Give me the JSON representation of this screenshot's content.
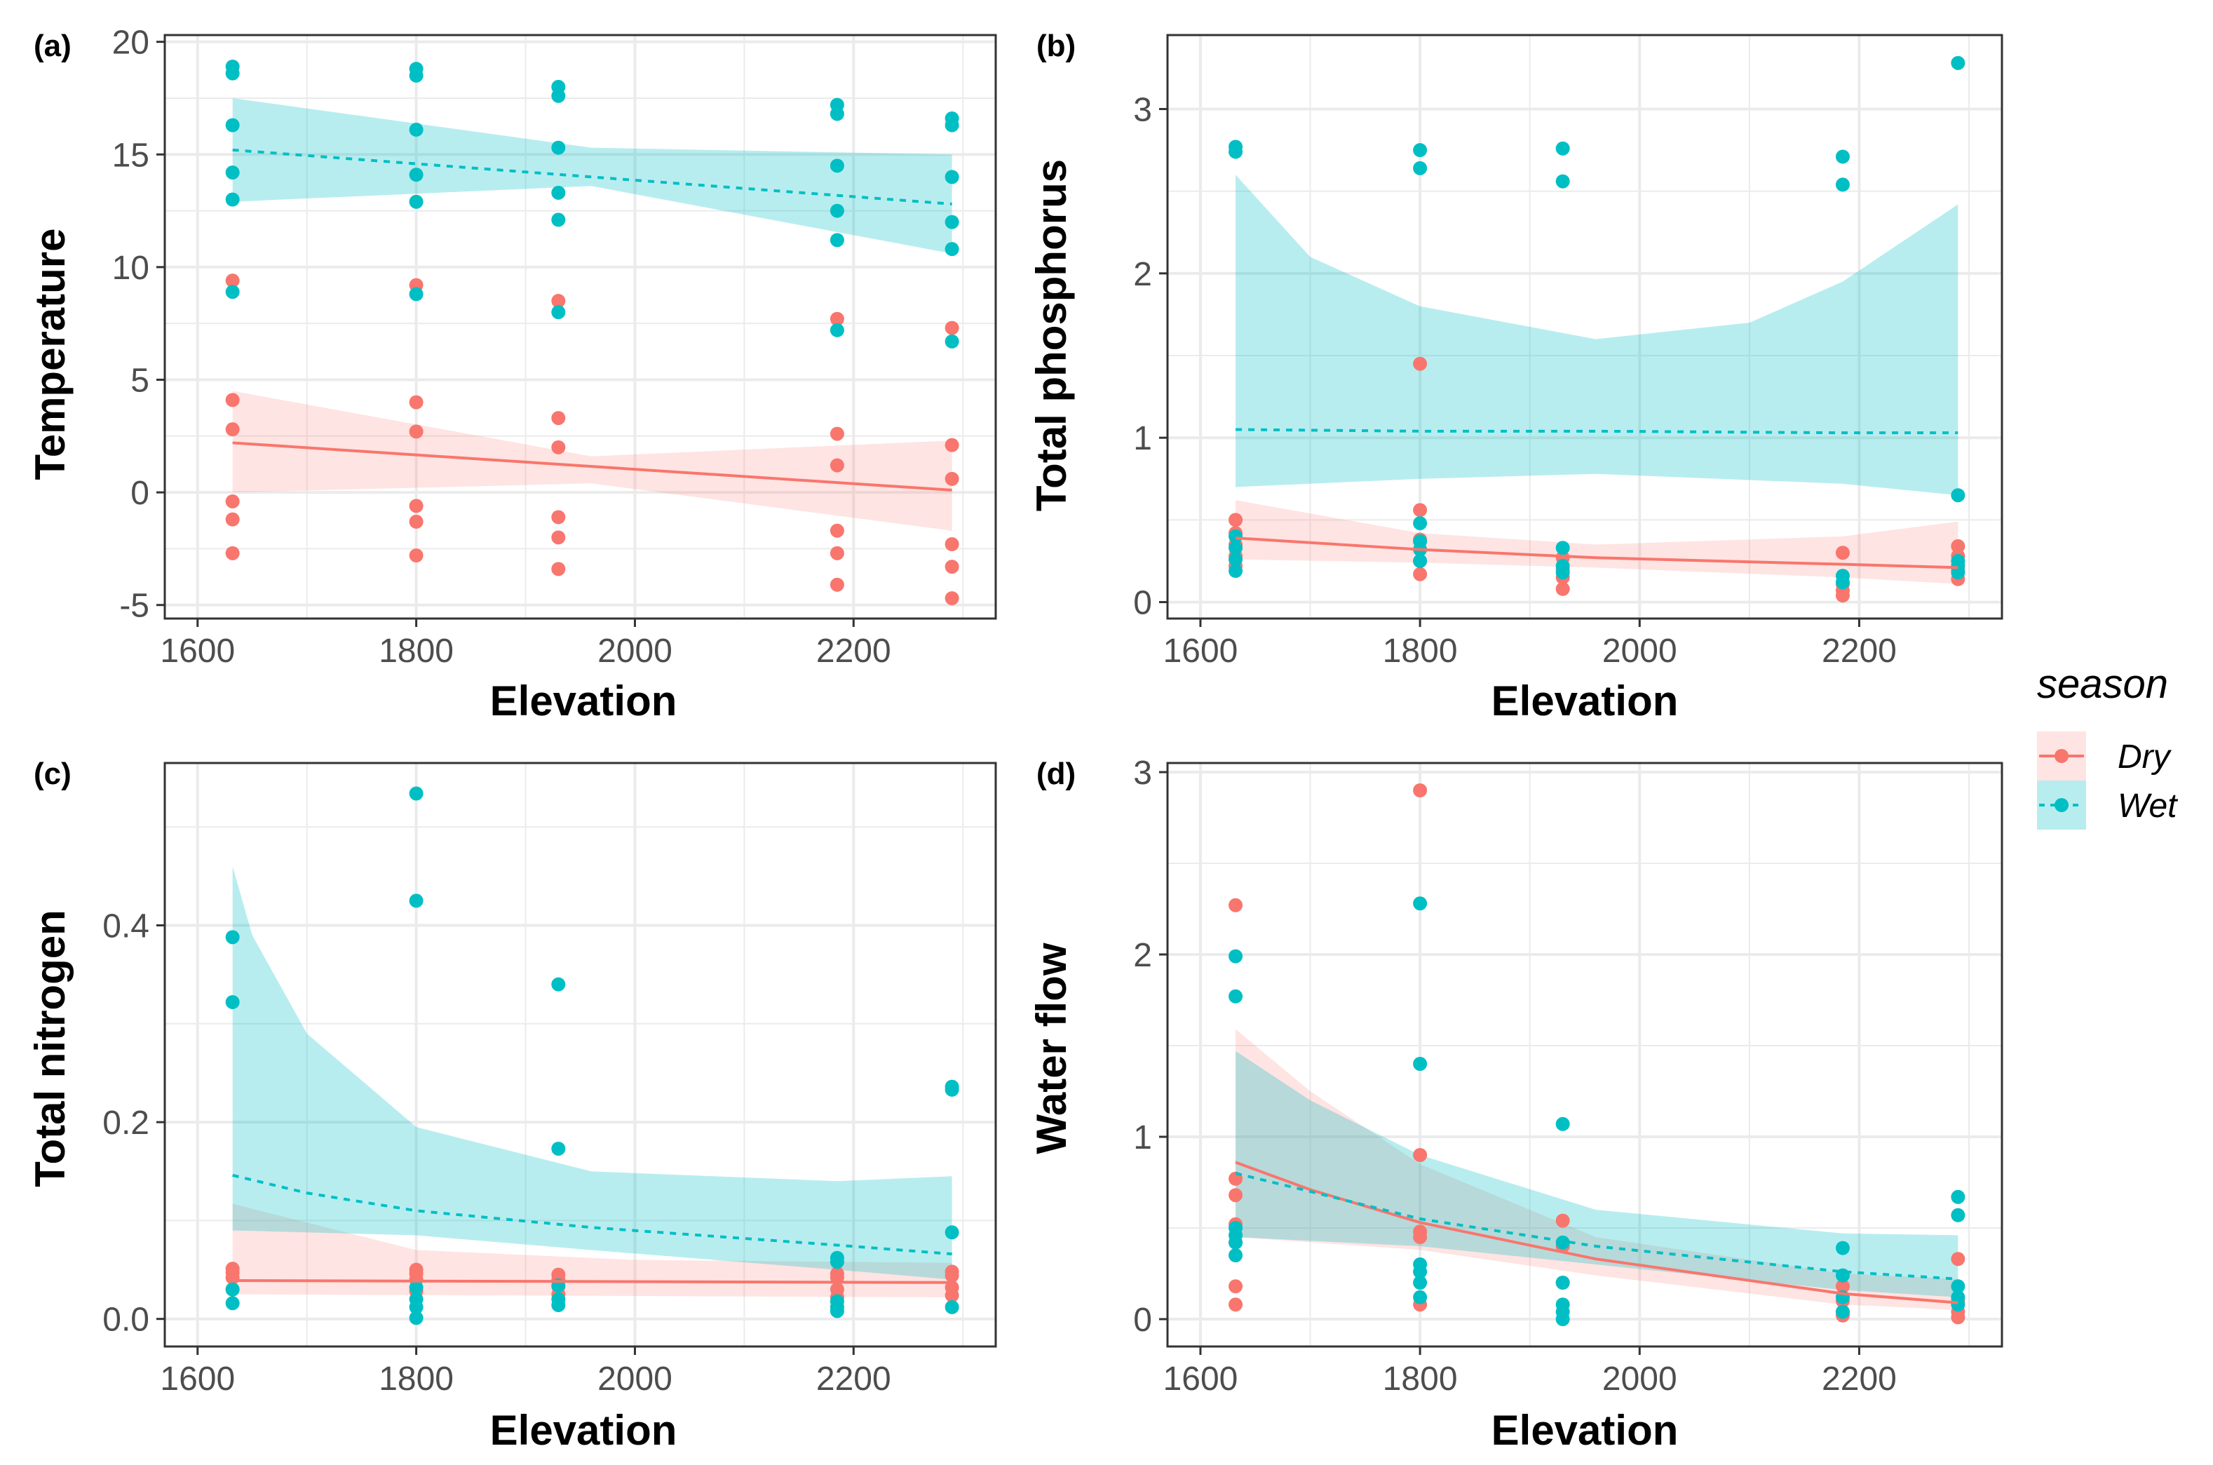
{
  "colors": {
    "dry": "#f8766d",
    "wet": "#00bfc4",
    "dry_band": "#f8766d",
    "wet_band": "#00bfc4",
    "grid": "#ebebeb",
    "panel_border": "#333333"
  },
  "legend": {
    "title": "season",
    "items": [
      {
        "key": "dry",
        "label": "Dry",
        "linestyle": "solid"
      },
      {
        "key": "wet",
        "label": "Wet",
        "linestyle": "dashed"
      }
    ]
  },
  "chart_data": [
    {
      "type": "scatter",
      "panel": "(a)",
      "xlabel": "Elevation",
      "ylabel": "Temperature",
      "xlim": [
        1570,
        2330
      ],
      "ylim": [
        -5.6,
        20.3
      ],
      "xticks": [
        1600,
        1800,
        2000,
        2200
      ],
      "yticks": [
        -5,
        0,
        5,
        10,
        15,
        20
      ],
      "tick_labels_x": [
        "1600",
        "1800",
        "2000",
        "2200"
      ],
      "tick_labels_y": [
        "-5",
        "0",
        "5",
        "10",
        "15",
        "20"
      ],
      "series": [
        {
          "name": "Dry",
          "x": [
            1632,
            1632,
            1632,
            1632,
            1632,
            1632,
            1800,
            1800,
            1800,
            1800,
            1800,
            1800,
            1930,
            1930,
            1930,
            1930,
            1930,
            1930,
            2185,
            2185,
            2185,
            2185,
            2185,
            2185,
            2290,
            2290,
            2290,
            2290,
            2290,
            2290
          ],
          "y": [
            9.4,
            4.1,
            2.8,
            -0.4,
            -1.2,
            -2.7,
            9.2,
            4.0,
            2.7,
            -0.6,
            -1.3,
            -2.8,
            8.5,
            3.3,
            2.0,
            -1.1,
            -2.0,
            -3.4,
            7.7,
            2.6,
            1.2,
            -1.7,
            -2.7,
            -4.1,
            7.3,
            2.1,
            0.6,
            -2.3,
            -3.3,
            -4.7
          ]
        },
        {
          "name": "Wet",
          "x": [
            1632,
            1632,
            1632,
            1632,
            1632,
            1632,
            1800,
            1800,
            1800,
            1800,
            1800,
            1800,
            1930,
            1930,
            1930,
            1930,
            1930,
            1930,
            2185,
            2185,
            2185,
            2185,
            2185,
            2185,
            2290,
            2290,
            2290,
            2290,
            2290,
            2290
          ],
          "y": [
            18.9,
            18.6,
            16.3,
            14.2,
            13.0,
            8.9,
            18.8,
            18.5,
            16.1,
            14.1,
            12.9,
            8.8,
            18.0,
            17.6,
            15.3,
            13.3,
            12.1,
            8.0,
            17.2,
            16.8,
            14.5,
            12.5,
            11.2,
            7.2,
            16.6,
            16.3,
            14.0,
            12.0,
            10.8,
            6.7
          ]
        }
      ],
      "fits": [
        {
          "name": "Dry",
          "x": [
            1632,
            2290
          ],
          "y": [
            2.2,
            0.1
          ],
          "ci_lower": [
            [
              1632,
              -0.0
            ],
            [
              1960,
              0.4
            ],
            [
              2290,
              -1.7
            ]
          ],
          "ci_upper": [
            [
              1632,
              4.5
            ],
            [
              1960,
              1.6
            ],
            [
              2290,
              2.3
            ]
          ]
        },
        {
          "name": "Wet",
          "x": [
            1632,
            2290
          ],
          "y": [
            15.2,
            12.8
          ],
          "ci_lower": [
            [
              1632,
              12.9
            ],
            [
              1960,
              13.6
            ],
            [
              2290,
              10.6
            ]
          ],
          "ci_upper": [
            [
              1632,
              17.5
            ],
            [
              1960,
              15.3
            ],
            [
              2290,
              15.0
            ]
          ]
        }
      ]
    },
    {
      "type": "scatter",
      "panel": "(b)",
      "xlabel": "Elevation",
      "ylabel": "Total phosphorus",
      "xlim": [
        1570,
        2330
      ],
      "ylim": [
        -0.1,
        3.45
      ],
      "xticks": [
        1600,
        1800,
        2000,
        2200
      ],
      "yticks": [
        0,
        1,
        2,
        3
      ],
      "tick_labels_x": [
        "1600",
        "1800",
        "2000",
        "2200"
      ],
      "tick_labels_y": [
        "0",
        "1",
        "2",
        "3"
      ],
      "series": [
        {
          "name": "Dry",
          "x": [
            1632,
            1632,
            1632,
            1632,
            1632,
            1800,
            1800,
            1800,
            1800,
            1800,
            1930,
            1930,
            1930,
            1930,
            2185,
            2185,
            2185,
            2185,
            2290,
            2290,
            2290,
            2290
          ],
          "y": [
            0.5,
            0.42,
            0.35,
            0.28,
            0.22,
            1.45,
            0.56,
            0.38,
            0.25,
            0.17,
            0.27,
            0.2,
            0.15,
            0.08,
            0.3,
            0.11,
            0.07,
            0.04,
            0.34,
            0.28,
            0.2,
            0.14
          ]
        },
        {
          "name": "Wet",
          "x": [
            1632,
            1632,
            1632,
            1632,
            1632,
            1632,
            1800,
            1800,
            1800,
            1800,
            1800,
            1800,
            1930,
            1930,
            1930,
            1930,
            1930,
            2185,
            2185,
            2185,
            2185,
            2290,
            2290,
            2290,
            2290,
            2290
          ],
          "y": [
            2.77,
            2.74,
            0.4,
            0.33,
            0.26,
            0.19,
            2.75,
            2.64,
            0.48,
            0.37,
            0.32,
            0.25,
            2.76,
            2.56,
            0.33,
            0.22,
            0.18,
            2.71,
            2.54,
            0.16,
            0.12,
            3.28,
            0.65,
            0.25,
            0.22,
            0.18
          ]
        }
      ],
      "fits": [
        {
          "name": "Dry",
          "x": [
            1632,
            1800,
            1960,
            2185,
            2290
          ],
          "y": [
            0.39,
            0.32,
            0.27,
            0.23,
            0.21
          ],
          "ci_lower": [
            [
              1632,
              0.26
            ],
            [
              1800,
              0.24
            ],
            [
              1960,
              0.21
            ],
            [
              2185,
              0.15
            ],
            [
              2290,
              0.11
            ]
          ],
          "ci_upper": [
            [
              1632,
              0.62
            ],
            [
              1800,
              0.42
            ],
            [
              1960,
              0.35
            ],
            [
              2185,
              0.4
            ],
            [
              2290,
              0.49
            ]
          ]
        },
        {
          "name": "Wet",
          "x": [
            1632,
            1800,
            1960,
            2185,
            2290
          ],
          "y": [
            1.05,
            1.04,
            1.04,
            1.03,
            1.03
          ],
          "ci_lower": [
            [
              1632,
              0.7
            ],
            [
              1800,
              0.75
            ],
            [
              1960,
              0.78
            ],
            [
              2185,
              0.72
            ],
            [
              2290,
              0.65
            ]
          ],
          "ci_upper": [
            [
              1632,
              2.6
            ],
            [
              1700,
              2.1
            ],
            [
              1800,
              1.8
            ],
            [
              1960,
              1.6
            ],
            [
              2100,
              1.7
            ],
            [
              2185,
              1.95
            ],
            [
              2290,
              2.42
            ]
          ]
        }
      ]
    },
    {
      "type": "scatter",
      "panel": "(c)",
      "xlabel": "Elevation",
      "ylabel": "Total nitrogen",
      "xlim": [
        1570,
        2330
      ],
      "ylim": [
        -0.028,
        0.565
      ],
      "xticks": [
        1600,
        1800,
        2000,
        2200
      ],
      "yticks": [
        0.0,
        0.2,
        0.4
      ],
      "tick_labels_x": [
        "1600",
        "1800",
        "2000",
        "2200"
      ],
      "tick_labels_y": [
        "0.0",
        "0.2",
        "0.4"
      ],
      "series": [
        {
          "name": "Dry",
          "x": [
            1632,
            1632,
            1632,
            1632,
            1800,
            1800,
            1800,
            1800,
            1930,
            1930,
            1930,
            1930,
            2185,
            2185,
            2185,
            2185,
            2290,
            2290,
            2290,
            2290
          ],
          "y": [
            0.051,
            0.047,
            0.042,
            0.03,
            0.05,
            0.046,
            0.04,
            0.028,
            0.045,
            0.04,
            0.033,
            0.025,
            0.046,
            0.042,
            0.03,
            0.022,
            0.048,
            0.044,
            0.032,
            0.024
          ]
        },
        {
          "name": "Wet",
          "x": [
            1632,
            1632,
            1632,
            1632,
            1800,
            1800,
            1800,
            1800,
            1800,
            1800,
            1930,
            1930,
            1930,
            1930,
            1930,
            2185,
            2185,
            2185,
            2185,
            2185,
            2290,
            2290,
            2290,
            2290
          ],
          "y": [
            0.388,
            0.322,
            0.03,
            0.016,
            0.534,
            0.425,
            0.032,
            0.02,
            0.012,
            0.001,
            0.34,
            0.173,
            0.034,
            0.02,
            0.014,
            0.062,
            0.058,
            0.018,
            0.012,
            0.008,
            0.236,
            0.233,
            0.088,
            0.012
          ]
        }
      ],
      "fits": [
        {
          "name": "Dry",
          "x": [
            1632,
            2290
          ],
          "y": [
            0.039,
            0.037
          ],
          "ci_lower": [
            [
              1632,
              0.025
            ],
            [
              2290,
              0.022
            ]
          ],
          "ci_upper": [
            [
              1632,
              0.117
            ],
            [
              1800,
              0.07
            ],
            [
              2000,
              0.06
            ],
            [
              2290,
              0.057
            ]
          ]
        },
        {
          "name": "Wet",
          "x": [
            1632,
            1700,
            1800,
            1960,
            2185,
            2290
          ],
          "y": [
            0.146,
            0.128,
            0.11,
            0.093,
            0.075,
            0.066
          ],
          "ci_lower": [
            [
              1632,
              0.09
            ],
            [
              1800,
              0.085
            ],
            [
              1960,
              0.07
            ],
            [
              2185,
              0.05
            ],
            [
              2290,
              0.04
            ]
          ],
          "ci_upper": [
            [
              1632,
              0.46
            ],
            [
              1650,
              0.39
            ],
            [
              1700,
              0.29
            ],
            [
              1800,
              0.195
            ],
            [
              1960,
              0.15
            ],
            [
              2185,
              0.14
            ],
            [
              2290,
              0.145
            ]
          ]
        }
      ]
    },
    {
      "type": "scatter",
      "panel": "(d)",
      "xlabel": "Elevation",
      "ylabel": "Water flow",
      "xlim": [
        1570,
        2330
      ],
      "ylim": [
        -0.15,
        3.05
      ],
      "xticks": [
        1600,
        1800,
        2000,
        2200
      ],
      "yticks": [
        0,
        1,
        2,
        3
      ],
      "tick_labels_x": [
        "1600",
        "1800",
        "2000",
        "2200"
      ],
      "tick_labels_y": [
        "0",
        "1",
        "2",
        "3"
      ],
      "series": [
        {
          "name": "Dry",
          "x": [
            1632,
            1632,
            1632,
            1632,
            1632,
            1632,
            1632,
            1800,
            1800,
            1800,
            1800,
            1800,
            1930,
            1930,
            1930,
            2185,
            2185,
            2185,
            2185,
            2290,
            2290,
            2290,
            2290
          ],
          "y": [
            2.27,
            0.77,
            0.68,
            0.52,
            0.42,
            0.18,
            0.08,
            2.9,
            0.9,
            0.48,
            0.45,
            0.08,
            0.54,
            0.4,
            0.2,
            0.18,
            0.1,
            0.04,
            0.02,
            0.33,
            0.1,
            0.04,
            0.01
          ]
        },
        {
          "name": "Wet",
          "x": [
            1632,
            1632,
            1632,
            1632,
            1632,
            1632,
            1800,
            1800,
            1800,
            1800,
            1800,
            1800,
            1930,
            1930,
            1930,
            1930,
            1930,
            1930,
            2185,
            2185,
            2185,
            2185,
            2290,
            2290,
            2290,
            2290,
            2290
          ],
          "y": [
            1.99,
            1.77,
            0.5,
            0.46,
            0.42,
            0.35,
            2.28,
            1.4,
            0.3,
            0.26,
            0.2,
            0.12,
            1.07,
            0.42,
            0.2,
            0.08,
            0.04,
            0.0,
            0.39,
            0.24,
            0.12,
            0.04,
            0.67,
            0.57,
            0.18,
            0.12,
            0.08
          ]
        }
      ],
      "fits": [
        {
          "name": "Dry",
          "x": [
            1632,
            1700,
            1800,
            1960,
            2185,
            2290
          ],
          "y": [
            0.86,
            0.71,
            0.53,
            0.33,
            0.14,
            0.09
          ],
          "ci_lower": [
            [
              1632,
              0.45
            ],
            [
              1800,
              0.38
            ],
            [
              1960,
              0.24
            ],
            [
              2185,
              0.08
            ],
            [
              2290,
              0.05
            ]
          ],
          "ci_upper": [
            [
              1632,
              1.59
            ],
            [
              1700,
              1.25
            ],
            [
              1800,
              0.85
            ],
            [
              1960,
              0.45
            ],
            [
              2185,
              0.25
            ],
            [
              2290,
              0.22
            ]
          ]
        },
        {
          "name": "Wet",
          "x": [
            1632,
            1700,
            1800,
            1960,
            2185,
            2290
          ],
          "y": [
            0.8,
            0.7,
            0.55,
            0.4,
            0.26,
            0.22
          ],
          "ci_lower": [
            [
              1632,
              0.45
            ],
            [
              1800,
              0.4
            ],
            [
              1960,
              0.3
            ],
            [
              2185,
              0.16
            ],
            [
              2290,
              0.12
            ]
          ],
          "ci_upper": [
            [
              1632,
              1.47
            ],
            [
              1700,
              1.2
            ],
            [
              1800,
              0.9
            ],
            [
              1960,
              0.6
            ],
            [
              2185,
              0.47
            ],
            [
              2290,
              0.46
            ]
          ]
        }
      ]
    }
  ]
}
